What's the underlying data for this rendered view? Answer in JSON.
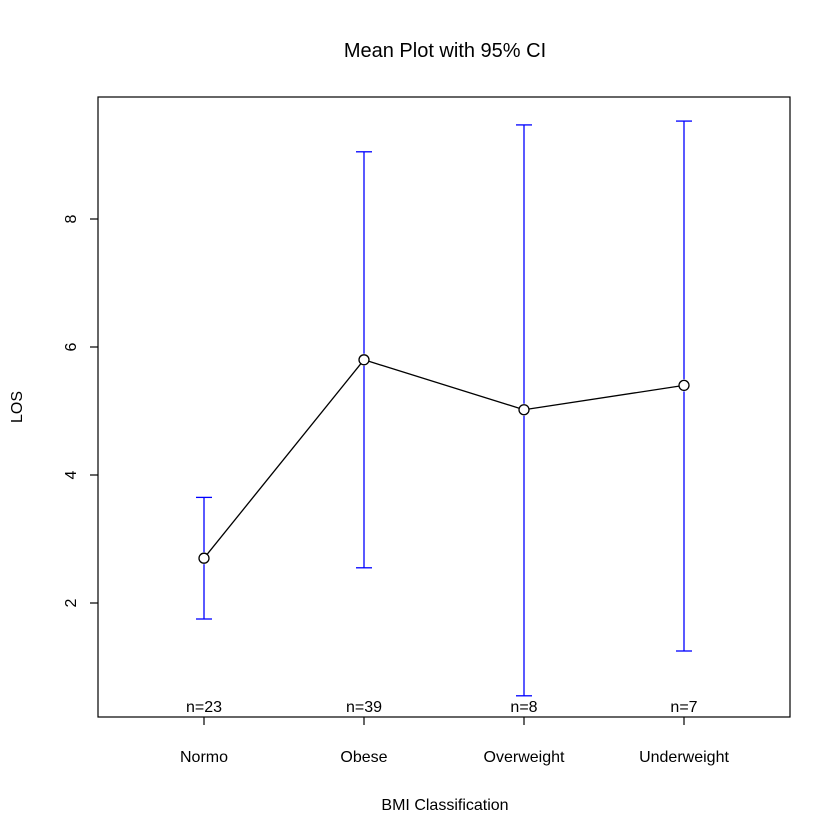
{
  "chart_data": {
    "type": "line",
    "title": "Mean Plot with 95% CI",
    "xlabel": "BMI Classification",
    "ylabel": "LOS",
    "categories": [
      "Normo",
      "Obese",
      "Overweight",
      "Underweight"
    ],
    "ylim": [
      0.55,
      9.7
    ],
    "yticks": [
      2,
      4,
      6,
      8
    ],
    "grid": false,
    "legend": "none",
    "series": [
      {
        "mean": [
          2.7,
          5.8,
          5.02,
          5.4
        ],
        "ci_lower": [
          1.75,
          2.55,
          0.55,
          1.25
        ],
        "ci_upper": [
          3.65,
          9.05,
          9.47,
          9.53
        ]
      }
    ],
    "sample_sizes": [
      "n=23",
      "n=39",
      "n=8",
      "n=7"
    ],
    "colors": {
      "line": "#000000",
      "error_bars": "#0000ff",
      "axes": "#000000"
    }
  }
}
